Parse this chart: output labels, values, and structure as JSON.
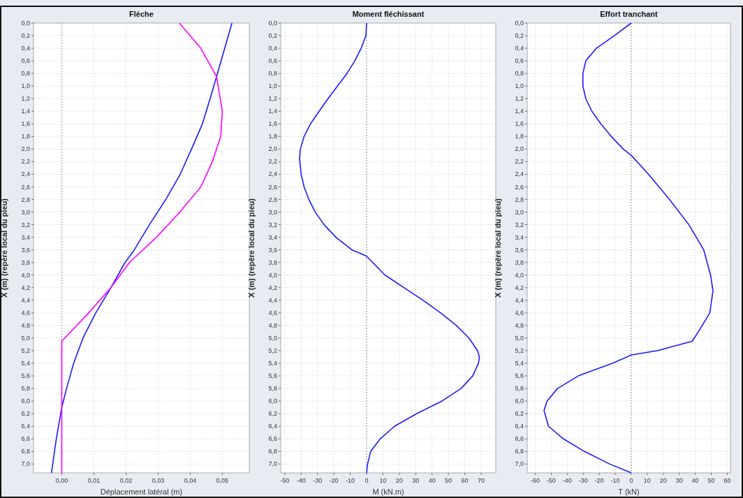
{
  "chart_data": [
    {
      "type": "line",
      "title": "Flèche",
      "xlabel": "Déplacement latéral (m)",
      "ylabel": "X (m) (repère local du pieu)",
      "xlim": [
        -0.0088,
        0.0584
      ],
      "xticks": [
        {
          "value": 0,
          "label": "0,00"
        },
        {
          "value": 0.01,
          "label": "0,01"
        },
        {
          "value": 0.02,
          "label": "0,02"
        },
        {
          "value": 0.03,
          "label": "0,03"
        },
        {
          "value": 0.04,
          "label": "0,04"
        },
        {
          "value": 0.05,
          "label": "0,05"
        }
      ],
      "ylim": [
        7.14,
        0
      ],
      "yticks": [
        {
          "value": 0,
          "label": "0,0"
        },
        {
          "value": 0.2,
          "label": "0,2"
        },
        {
          "value": 0.4,
          "label": "0,4"
        },
        {
          "value": 0.6,
          "label": "0,6"
        },
        {
          "value": 0.8,
          "label": "0,8"
        },
        {
          "value": 1,
          "label": "1,0"
        },
        {
          "value": 1.2,
          "label": "1,2"
        },
        {
          "value": 1.4,
          "label": "1,4"
        },
        {
          "value": 1.6,
          "label": "1,6"
        },
        {
          "value": 1.8,
          "label": "1,8"
        },
        {
          "value": 2,
          "label": "2,0"
        },
        {
          "value": 2.2,
          "label": "2,2"
        },
        {
          "value": 2.4,
          "label": "2,4"
        },
        {
          "value": 2.6,
          "label": "2,6"
        },
        {
          "value": 2.8,
          "label": "2,8"
        },
        {
          "value": 3,
          "label": "3,0"
        },
        {
          "value": 3.2,
          "label": "3,2"
        },
        {
          "value": 3.4,
          "label": "3,4"
        },
        {
          "value": 3.6,
          "label": "3,6"
        },
        {
          "value": 3.8,
          "label": "3,8"
        },
        {
          "value": 4,
          "label": "4,0"
        },
        {
          "value": 4.2,
          "label": "4,2"
        },
        {
          "value": 4.4,
          "label": "4,4"
        },
        {
          "value": 4.6,
          "label": "4,6"
        },
        {
          "value": 4.8,
          "label": "4,8"
        },
        {
          "value": 5,
          "label": "5,0"
        },
        {
          "value": 5.2,
          "label": "5,2"
        },
        {
          "value": 5.4,
          "label": "5,4"
        },
        {
          "value": 5.6,
          "label": "5,6"
        },
        {
          "value": 5.8,
          "label": "5,8"
        },
        {
          "value": 6,
          "label": "6,0"
        },
        {
          "value": 6.2,
          "label": "6,2"
        },
        {
          "value": 6.4,
          "label": "6,4"
        },
        {
          "value": 6.6,
          "label": "6,6"
        },
        {
          "value": 6.8,
          "label": "6,8"
        },
        {
          "value": 7,
          "label": "7,0"
        }
      ],
      "grid": true,
      "line_style": "solid",
      "ref_lines": [
        {
          "axis": "x",
          "value": 0,
          "color": "#999999",
          "line_style": "dotted"
        }
      ],
      "series": [
        {
          "color": "#1a1aff",
          "x": [
            0.053,
            0.0482,
            0.0462,
            0.0438,
            0.0404,
            0.0369,
            0.0324,
            0.0273,
            0.0226,
            0.0197,
            0.0153,
            0.0106,
            0.0066,
            0.0037,
            0.0015,
            0,
            -0.0017,
            -0.0032
          ],
          "values": [
            0,
            0.85,
            1.2,
            1.6,
            2,
            2.4,
            2.8,
            3.2,
            3.6,
            3.8,
            4.2,
            4.6,
            5,
            5.4,
            5.8,
            6.1,
            6.6,
            7.14
          ]
        },
        {
          "color": "#ff00ff",
          "x": [
            0.0366,
            0.0433,
            0.0482,
            0.05,
            0.0495,
            0.0469,
            0.0433,
            0.0368,
            0.0295,
            0.0211,
            0.0153,
            0.0084,
            0,
            0
          ],
          "values": [
            0,
            0.4,
            0.85,
            1.4,
            1.8,
            2.2,
            2.6,
            3,
            3.4,
            3.8,
            4.2,
            4.6,
            5.05,
            7.14
          ]
        }
      ]
    },
    {
      "type": "line",
      "title": "Moment fléchissant",
      "xlabel": "M (kN.m)",
      "ylabel": "X (m) (repère local du pieu)",
      "xlim": [
        -52.5,
        79
      ],
      "xticks": [
        -50,
        -40,
        -30,
        -20,
        -10,
        0,
        10,
        20,
        30,
        40,
        50,
        60,
        70
      ],
      "ylim": [
        7.14,
        0
      ],
      "yticks": [
        {
          "value": 0,
          "label": "0,0"
        },
        {
          "value": 0.2,
          "label": "0,2"
        },
        {
          "value": 0.4,
          "label": "0,4"
        },
        {
          "value": 0.6,
          "label": "0,6"
        },
        {
          "value": 0.8,
          "label": "0,8"
        },
        {
          "value": 1,
          "label": "1,0"
        },
        {
          "value": 1.2,
          "label": "1,2"
        },
        {
          "value": 1.4,
          "label": "1,4"
        },
        {
          "value": 1.6,
          "label": "1,6"
        },
        {
          "value": 1.8,
          "label": "1,8"
        },
        {
          "value": 2,
          "label": "2,0"
        },
        {
          "value": 2.2,
          "label": "2,2"
        },
        {
          "value": 2.4,
          "label": "2,4"
        },
        {
          "value": 2.6,
          "label": "2,6"
        },
        {
          "value": 2.8,
          "label": "2,8"
        },
        {
          "value": 3,
          "label": "3,0"
        },
        {
          "value": 3.2,
          "label": "3,2"
        },
        {
          "value": 3.4,
          "label": "3,4"
        },
        {
          "value": 3.6,
          "label": "3,6"
        },
        {
          "value": 3.8,
          "label": "3,8"
        },
        {
          "value": 4,
          "label": "4,0"
        },
        {
          "value": 4.2,
          "label": "4,2"
        },
        {
          "value": 4.4,
          "label": "4,4"
        },
        {
          "value": 4.6,
          "label": "4,6"
        },
        {
          "value": 4.8,
          "label": "4,8"
        },
        {
          "value": 5,
          "label": "5,0"
        },
        {
          "value": 5.2,
          "label": "5,2"
        },
        {
          "value": 5.4,
          "label": "5,4"
        },
        {
          "value": 5.6,
          "label": "5,6"
        },
        {
          "value": 5.8,
          "label": "5,8"
        },
        {
          "value": 6,
          "label": "6,0"
        },
        {
          "value": 6.2,
          "label": "6,2"
        },
        {
          "value": 6.4,
          "label": "6,4"
        },
        {
          "value": 6.6,
          "label": "6,6"
        },
        {
          "value": 6.8,
          "label": "6,8"
        },
        {
          "value": 7,
          "label": "7,0"
        }
      ],
      "grid": true,
      "line_style": "solid",
      "ref_lines": [
        {
          "axis": "x",
          "value": 0,
          "color": "#999999",
          "line_style": "dotted"
        }
      ],
      "series": [
        {
          "color": "#1a1aff",
          "x": [
            0,
            -0.4,
            -3.3,
            -7.2,
            -12,
            -17.8,
            -23.6,
            -29,
            -34.3,
            -38.2,
            -40.5,
            -41,
            -40,
            -38.2,
            -35.3,
            -31.4,
            -26,
            -18.8,
            -9,
            0,
            11.2,
            22.9,
            34.5,
            45.2,
            54.8,
            62.6,
            67.8,
            69,
            68.4,
            64.9,
            57.8,
            46.1,
            30.6,
            17.1,
            8.3,
            2.5,
            0.6,
            0
          ],
          "values": [
            0,
            0.2,
            0.4,
            0.6,
            0.8,
            1,
            1.2,
            1.4,
            1.6,
            1.8,
            2,
            2.15,
            2.4,
            2.6,
            2.8,
            3,
            3.2,
            3.4,
            3.6,
            3.7,
            4,
            4.2,
            4.4,
            4.6,
            4.8,
            5,
            5.2,
            5.3,
            5.4,
            5.6,
            5.8,
            6,
            6.2,
            6.4,
            6.6,
            6.8,
            7,
            7.14
          ]
        }
      ]
    },
    {
      "type": "line",
      "title": "Effort tranchant",
      "xlabel": "T (kN)",
      "ylabel": "X (m) (repère local du pieu)",
      "xlim": [
        -65,
        62
      ],
      "xticks": [
        -60,
        -50,
        -40,
        -30,
        -20,
        -10,
        0,
        10,
        20,
        30,
        40,
        50,
        60
      ],
      "ylim": [
        7.14,
        0
      ],
      "yticks": [
        {
          "value": 0,
          "label": "0,0"
        },
        {
          "value": 0.2,
          "label": "0,2"
        },
        {
          "value": 0.4,
          "label": "0,4"
        },
        {
          "value": 0.6,
          "label": "0,6"
        },
        {
          "value": 0.8,
          "label": "0,8"
        },
        {
          "value": 1,
          "label": "1,0"
        },
        {
          "value": 1.2,
          "label": "1,2"
        },
        {
          "value": 1.4,
          "label": "1,4"
        },
        {
          "value": 1.6,
          "label": "1,6"
        },
        {
          "value": 1.8,
          "label": "1,8"
        },
        {
          "value": 2,
          "label": "2,0"
        },
        {
          "value": 2.2,
          "label": "2,2"
        },
        {
          "value": 2.4,
          "label": "2,4"
        },
        {
          "value": 2.6,
          "label": "2,6"
        },
        {
          "value": 2.8,
          "label": "2,8"
        },
        {
          "value": 3,
          "label": "3,0"
        },
        {
          "value": 3.2,
          "label": "3,2"
        },
        {
          "value": 3.4,
          "label": "3,4"
        },
        {
          "value": 3.6,
          "label": "3,6"
        },
        {
          "value": 3.8,
          "label": "3,8"
        },
        {
          "value": 4,
          "label": "4,0"
        },
        {
          "value": 4.2,
          "label": "4,2"
        },
        {
          "value": 4.4,
          "label": "4,4"
        },
        {
          "value": 4.6,
          "label": "4,6"
        },
        {
          "value": 4.8,
          "label": "4,8"
        },
        {
          "value": 5,
          "label": "5,0"
        },
        {
          "value": 5.2,
          "label": "5,2"
        },
        {
          "value": 5.4,
          "label": "5,4"
        },
        {
          "value": 5.6,
          "label": "5,6"
        },
        {
          "value": 5.8,
          "label": "5,8"
        },
        {
          "value": 6,
          "label": "6,0"
        },
        {
          "value": 6.2,
          "label": "6,2"
        },
        {
          "value": 6.4,
          "label": "6,4"
        },
        {
          "value": 6.6,
          "label": "6,6"
        },
        {
          "value": 6.8,
          "label": "6,8"
        },
        {
          "value": 7,
          "label": "7,0"
        }
      ],
      "grid": true,
      "line_style": "solid",
      "ref_lines": [
        {
          "axis": "x",
          "value": 0,
          "color": "#999999",
          "line_style": "dotted"
        }
      ],
      "series": [
        {
          "color": "#1a1aff",
          "x": [
            0,
            -10.6,
            -21.8,
            -28.4,
            -30.2,
            -30.2,
            -28.4,
            -24.6,
            -19,
            -12.5,
            -5,
            0,
            10.8,
            23.9,
            36,
            45.3,
            49.6,
            51.1,
            49.1,
            44.4,
            38.2,
            16.4,
            0,
            -11.6,
            -33,
            -46,
            -52.6,
            -54.5,
            -51.7,
            -42.4,
            -29.3,
            -13.4,
            0
          ],
          "values": [
            0,
            0.2,
            0.4,
            0.6,
            0.8,
            1,
            1.2,
            1.4,
            1.6,
            1.8,
            2,
            2.1,
            2.4,
            2.8,
            3.2,
            3.6,
            4,
            4.25,
            4.6,
            4.8,
            5.05,
            5.2,
            5.27,
            5.4,
            5.6,
            5.8,
            6,
            6.15,
            6.4,
            6.6,
            6.8,
            7,
            7.14
          ]
        }
      ]
    }
  ]
}
